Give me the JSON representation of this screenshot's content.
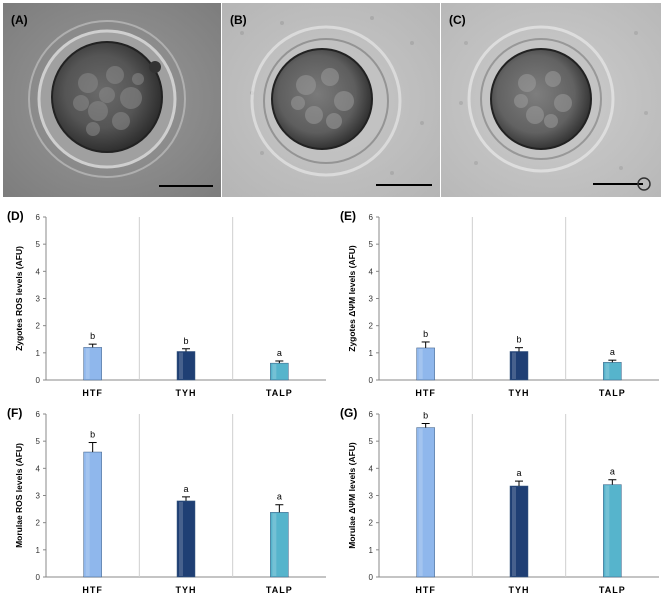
{
  "micrographs": [
    {
      "label": "(A)"
    },
    {
      "label": "(B)"
    },
    {
      "label": "(C)"
    }
  ],
  "chart_data": [
    {
      "panel": "(D)",
      "type": "bar",
      "categories": [
        "HTF",
        "TYH",
        "TALP"
      ],
      "values": [
        1.2,
        1.05,
        0.62
      ],
      "errors": [
        0.12,
        0.1,
        0.08
      ],
      "letters": [
        "b",
        "b",
        "a"
      ],
      "ylabel": "Zygotes ROS levels (AFU)",
      "ylim": [
        0,
        6
      ],
      "yticks": [
        "0",
        "1",
        "2",
        "3",
        "4",
        "5",
        "6"
      ],
      "colors": [
        "#8fb7ec",
        "#1f3f74",
        "#56b4cc"
      ]
    },
    {
      "panel": "(E)",
      "type": "bar",
      "categories": [
        "HTF",
        "TYH",
        "TALP"
      ],
      "values": [
        1.18,
        1.05,
        0.65
      ],
      "errors": [
        0.22,
        0.14,
        0.08
      ],
      "letters": [
        "b",
        "b",
        "a"
      ],
      "ylabel": "Zygotes ΔΨM  levels (AFU)",
      "ylim": [
        0,
        6
      ],
      "yticks": [
        "0",
        "1",
        "2",
        "3",
        "4",
        "5",
        "6"
      ],
      "colors": [
        "#8fb7ec",
        "#1f3f74",
        "#56b4cc"
      ]
    },
    {
      "panel": "(F)",
      "type": "bar",
      "categories": [
        "HTF",
        "TYH",
        "TALP"
      ],
      "values": [
        4.6,
        2.8,
        2.38
      ],
      "errors": [
        0.35,
        0.15,
        0.28
      ],
      "letters": [
        "b",
        "a",
        "a"
      ],
      "ylabel": "Morulae ROS levels (AFU)",
      "ylim": [
        0,
        6
      ],
      "yticks": [
        "0",
        "1",
        "2",
        "3",
        "4",
        "5",
        "6"
      ],
      "colors": [
        "#8fb7ec",
        "#1f3f74",
        "#56b4cc"
      ]
    },
    {
      "panel": "(G)",
      "type": "bar",
      "categories": [
        "HTF",
        "TYH",
        "TALP"
      ],
      "values": [
        5.5,
        3.35,
        3.4
      ],
      "errors": [
        0.15,
        0.18,
        0.18
      ],
      "letters": [
        "b",
        "a",
        "a"
      ],
      "ylabel": "Morulae ΔΨM  levels (AFU)",
      "ylim": [
        0,
        6
      ],
      "yticks": [
        "0",
        "1",
        "2",
        "3",
        "4",
        "5",
        "6"
      ],
      "colors": [
        "#8fb7ec",
        "#1f3f74",
        "#56b4cc"
      ]
    }
  ]
}
